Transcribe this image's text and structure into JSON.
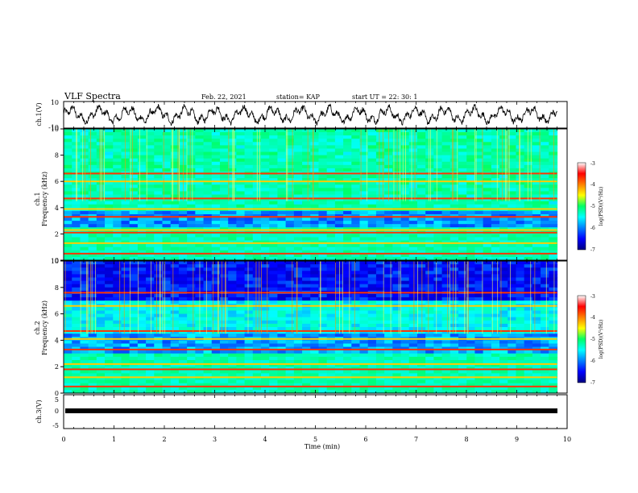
{
  "header": {
    "title": "VLF Spectra",
    "date": "Feb. 22, 2021",
    "station": "station= KAP",
    "start_ut": "start  UT  =   22: 30: 1"
  },
  "panels": {
    "ch1_wave": {
      "ylabel": "ch.1(V)",
      "yticks": [
        "10",
        "-10"
      ]
    },
    "ch1_spec": {
      "ylabel_line1": "ch.1",
      "ylabel_line2": "Frequency  (kHz)",
      "yticks": [
        "0",
        "2",
        "4",
        "6",
        "8",
        "10"
      ]
    },
    "ch2_spec": {
      "ylabel_line1": "ch.2",
      "ylabel_line2": "Frequency  (kHz)",
      "yticks": [
        "0",
        "2",
        "4",
        "6",
        "8",
        "10"
      ]
    },
    "ch3_wave": {
      "ylabel": "ch.3(V)",
      "yticks": [
        "5",
        "0",
        "-5"
      ]
    }
  },
  "colorbar": {
    "ticks": [
      "-3",
      "-4",
      "-5",
      "-6",
      "-7"
    ],
    "label": "log(PSD)(V²/Hz)"
  },
  "xaxis": {
    "label": "Time  (min)",
    "ticks": [
      "0",
      "1",
      "2",
      "3",
      "4",
      "5",
      "6",
      "7",
      "8",
      "9",
      "10"
    ]
  },
  "chart_data": [
    {
      "type": "line",
      "title": "VLF Spectra",
      "ylabel": "ch.1(V)",
      "ylim": [
        -10,
        10
      ],
      "xlim": [
        0,
        10
      ],
      "description_series": "noisy oscillating waveform, amplitude roughly ±5 V",
      "x": [
        0,
        1,
        2,
        3,
        4,
        5,
        6,
        7,
        8,
        9,
        9.8
      ],
      "values": [
        0,
        2,
        -1,
        3,
        -2,
        1,
        4,
        -3,
        2,
        0,
        -1
      ]
    },
    {
      "type": "heatmap",
      "ylabel": "ch.1 Frequency (kHz)",
      "ylim": [
        0,
        10
      ],
      "xlim": [
        0,
        10
      ],
      "bands_khz": [
        0.5,
        1.3,
        2.1,
        2.3,
        3.3,
        3.9,
        4.7,
        6.0,
        6.6
      ],
      "colorscale_range": [
        -7,
        -3
      ]
    },
    {
      "type": "heatmap",
      "ylabel": "ch.2 Frequency (kHz)",
      "ylim": [
        0,
        10
      ],
      "xlim": [
        0,
        10
      ],
      "bands_khz": [
        0.5,
        1.2,
        1.8,
        2.2,
        3.3,
        4.1,
        4.7,
        6.6,
        7.6
      ],
      "colorscale_range": [
        -7,
        -3
      ]
    },
    {
      "type": "line",
      "ylabel": "ch.3(V)",
      "xlabel": "Time (min)",
      "ylim": [
        -5,
        5
      ],
      "xlim": [
        0,
        10
      ],
      "x": [
        0,
        9.8
      ],
      "values": [
        0,
        0
      ]
    }
  ]
}
